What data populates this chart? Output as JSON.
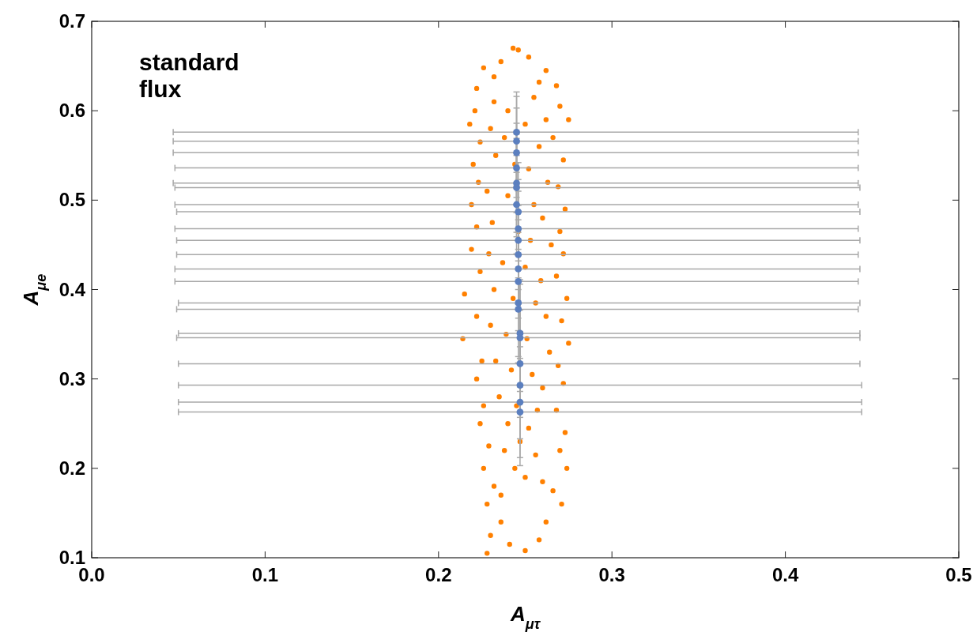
{
  "chart_data": {
    "type": "scatter",
    "xlabel": "A$_{μτ}$",
    "ylabel": "A$_{μe}$",
    "xlim": [
      0,
      0.5
    ],
    "ylim": [
      0.1,
      0.7
    ],
    "xticks": [
      {
        "value": 0,
        "label": "0.0"
      },
      0.1,
      0.2,
      0.3,
      0.4,
      0.5
    ],
    "yticks": [
      0.1,
      0.2,
      0.3,
      0.4,
      0.5,
      0.6,
      0.7
    ],
    "grid": false,
    "marker": "circle",
    "annotations": [
      {
        "text": "standard\nflux"
      }
    ],
    "series": [
      {
        "color": "#ff8000",
        "x": [
          0.243,
          0.246,
          0.236,
          0.252,
          0.226,
          0.262,
          0.232,
          0.258,
          0.222,
          0.268,
          0.221,
          0.27,
          0.218,
          0.275,
          0.224,
          0.266,
          0.22,
          0.272,
          0.223,
          0.269,
          0.219,
          0.273,
          0.222,
          0.27,
          0.219,
          0.272,
          0.224,
          0.268,
          0.215,
          0.274,
          0.222,
          0.271,
          0.214,
          0.275,
          0.225,
          0.269,
          0.222,
          0.272,
          0.226,
          0.268,
          0.224,
          0.273,
          0.229,
          0.27,
          0.226,
          0.274,
          0.232,
          0.266,
          0.228,
          0.271,
          0.236,
          0.262,
          0.23,
          0.258,
          0.228,
          0.25,
          0.241,
          0.232,
          0.24,
          0.255,
          0.262,
          0.23,
          0.238,
          0.25,
          0.258,
          0.233,
          0.244,
          0.252,
          0.263,
          0.228,
          0.24,
          0.255,
          0.26,
          0.231,
          0.246,
          0.253,
          0.265,
          0.229,
          0.237,
          0.25,
          0.259,
          0.232,
          0.243,
          0.256,
          0.262,
          0.23,
          0.239,
          0.251,
          0.264,
          0.233,
          0.242,
          0.254,
          0.26,
          0.235,
          0.245,
          0.257,
          0.24,
          0.252,
          0.247,
          0.238,
          0.256,
          0.244,
          0.25,
          0.236,
          0.26
        ],
        "values": [
          0.67,
          0.668,
          0.655,
          0.66,
          0.648,
          0.645,
          0.638,
          0.632,
          0.625,
          0.628,
          0.6,
          0.605,
          0.585,
          0.59,
          0.565,
          0.57,
          0.54,
          0.545,
          0.52,
          0.515,
          0.495,
          0.49,
          0.47,
          0.465,
          0.445,
          0.44,
          0.42,
          0.415,
          0.395,
          0.39,
          0.37,
          0.365,
          0.345,
          0.34,
          0.32,
          0.315,
          0.3,
          0.295,
          0.27,
          0.265,
          0.25,
          0.24,
          0.225,
          0.22,
          0.2,
          0.2,
          0.18,
          0.175,
          0.16,
          0.16,
          0.14,
          0.14,
          0.125,
          0.12,
          0.105,
          0.108,
          0.115,
          0.61,
          0.6,
          0.615,
          0.59,
          0.58,
          0.57,
          0.585,
          0.56,
          0.55,
          0.54,
          0.535,
          0.52,
          0.51,
          0.505,
          0.495,
          0.48,
          0.475,
          0.465,
          0.455,
          0.45,
          0.44,
          0.43,
          0.425,
          0.41,
          0.4,
          0.39,
          0.385,
          0.37,
          0.36,
          0.35,
          0.345,
          0.33,
          0.32,
          0.31,
          0.305,
          0.29,
          0.28,
          0.27,
          0.265,
          0.25,
          0.245,
          0.23,
          0.22,
          0.215,
          0.2,
          0.19,
          0.17,
          0.185
        ]
      },
      {
        "color": "#5b7fbf",
        "x": [
          0.245,
          0.245,
          0.245,
          0.245,
          0.245,
          0.245,
          0.245,
          0.246,
          0.246,
          0.246,
          0.246,
          0.246,
          0.246,
          0.246,
          0.246,
          0.247,
          0.247,
          0.247,
          0.247,
          0.247,
          0.247
        ],
        "values": [
          0.576,
          0.566,
          0.553,
          0.536,
          0.519,
          0.514,
          0.495,
          0.487,
          0.468,
          0.455,
          0.439,
          0.423,
          0.409,
          0.385,
          0.378,
          0.351,
          0.346,
          0.317,
          0.293,
          0.274,
          0.263
        ],
        "errors": [
          0.045,
          0.05,
          0.05,
          0.05,
          0.055,
          0.055,
          0.055,
          0.055,
          0.055,
          0.055,
          0.055,
          0.055,
          0.055,
          0.06,
          0.06,
          0.06,
          0.06,
          0.06,
          0.06,
          0.062,
          0.06
        ],
        "xerrors": [
          [
            0.047,
            0.442
          ],
          [
            0.047,
            0.442
          ],
          [
            0.047,
            0.442
          ],
          [
            0.048,
            0.442
          ],
          [
            0.047,
            0.442
          ],
          [
            0.048,
            0.443
          ],
          [
            0.048,
            0.442
          ],
          [
            0.049,
            0.443
          ],
          [
            0.048,
            0.442
          ],
          [
            0.049,
            0.443
          ],
          [
            0.049,
            0.442
          ],
          [
            0.048,
            0.443
          ],
          [
            0.048,
            0.442
          ],
          [
            0.05,
            0.443
          ],
          [
            0.049,
            0.442
          ],
          [
            0.05,
            0.443
          ],
          [
            0.049,
            0.443
          ],
          [
            0.05,
            0.443
          ],
          [
            0.05,
            0.444
          ],
          [
            0.05,
            0.444
          ],
          [
            0.05,
            0.444
          ]
        ]
      }
    ]
  }
}
